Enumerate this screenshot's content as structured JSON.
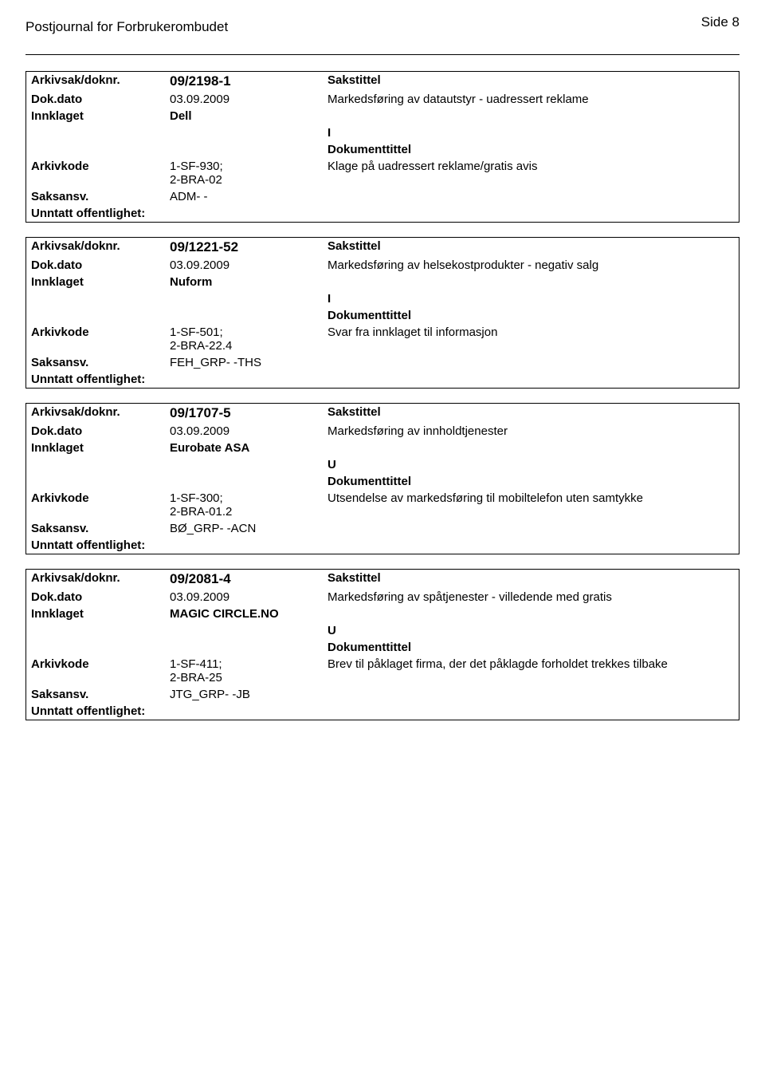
{
  "header": {
    "journal_title": "Postjournal for Forbrukerombudet",
    "page_label": "Side 8"
  },
  "labels": {
    "arkivsak": "Arkivsak/doknr.",
    "dokdato": "Dok.dato",
    "innklaget": "Innklaget",
    "arkivkode": "Arkivkode",
    "saksansv": "Saksansv.",
    "unntatt": "Unntatt offentlighet:",
    "sakstittel": "Sakstittel",
    "dokumenttittel": "Dokumenttittel"
  },
  "records": [
    {
      "doknr": "09/2198-1",
      "dokdato": "03.09.2009",
      "sakstittel_text": "Markedsføring av datautstyr - uadressert reklame",
      "innklaget": "Dell",
      "doc_type": "I",
      "arkivkode": "1-SF-930;\n2-BRA-02",
      "dokumenttittel_text": "Klage på uadressert reklame/gratis avis",
      "saksansv": "ADM- -"
    },
    {
      "doknr": "09/1221-52",
      "dokdato": "03.09.2009",
      "sakstittel_text": "Markedsføring av helsekostprodukter - negativ salg",
      "innklaget": "Nuform",
      "doc_type": "I",
      "arkivkode": "1-SF-501;\n2-BRA-22.4",
      "dokumenttittel_text": "Svar fra innklaget til informasjon",
      "saksansv": "FEH_GRP- -THS"
    },
    {
      "doknr": "09/1707-5",
      "dokdato": "03.09.2009",
      "sakstittel_text": "Markedsføring av innholdtjenester",
      "innklaget": "Eurobate ASA",
      "doc_type": "U",
      "arkivkode": "1-SF-300;\n2-BRA-01.2",
      "dokumenttittel_text": "Utsendelse av markedsføring til mobiltelefon uten samtykke",
      "saksansv": "BØ_GRP- -ACN"
    },
    {
      "doknr": "09/2081-4",
      "dokdato": "03.09.2009",
      "sakstittel_text": "Markedsføring av spåtjenester  - villedende med gratis",
      "innklaget": "MAGIC CIRCLE.NO",
      "doc_type": "U",
      "arkivkode": "1-SF-411;\n2-BRA-25",
      "dokumenttittel_text": "Brev til påklaget firma, der det påklagde forholdet trekkes tilbake",
      "saksansv": "JTG_GRP- -JB"
    }
  ]
}
